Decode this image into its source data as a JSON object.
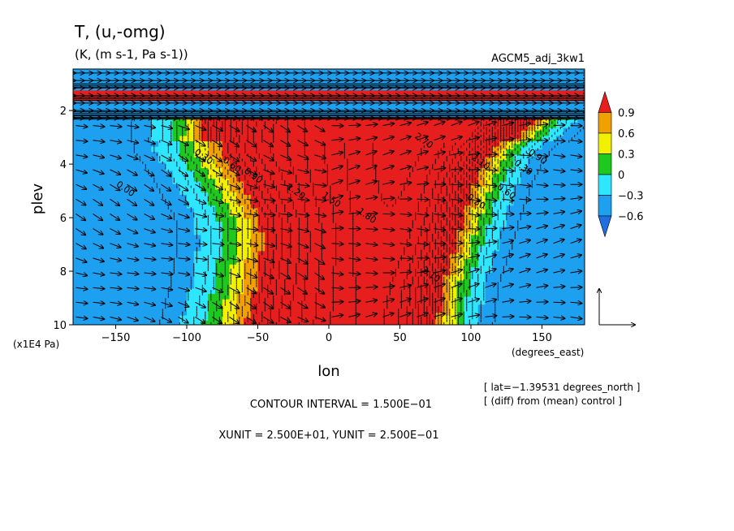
{
  "chart_data": {
    "type": "heatmap",
    "subtype": "latitude-pressure cross section: shaded temperature anomaly with contour lines and (u,-omg) vectors",
    "title": "T, (u,-omg)",
    "units_line": "(K, (m s-1, Pa s-1))",
    "model_label": "AGCM5_adj_3kw1",
    "xlabel": "lon",
    "x_unit_label": "(degrees_east)",
    "ylabel": "plev",
    "y_unit_label": "(x1E4 Pa)",
    "x_ticks": [
      -150,
      -100,
      -50,
      0,
      50,
      100,
      150
    ],
    "x_tick_labels": [
      "−150",
      "−100",
      "−50",
      "0",
      "50",
      "100",
      "150"
    ],
    "y_ticks": [
      2,
      4,
      6,
      8,
      10
    ],
    "y_tick_labels": [
      "2",
      "4",
      "6",
      "8",
      "10"
    ],
    "xlim": [
      -180,
      180
    ],
    "ylim": [
      10.0,
      0.45
    ],
    "y_inverted": true,
    "colorbar": {
      "levels": [
        -0.6,
        -0.3,
        0,
        0.3,
        0.6,
        0.9
      ],
      "level_labels": [
        "−0.6",
        "−0.3",
        "0",
        "0.3",
        "0.6",
        "0.9"
      ],
      "colors": [
        "#1f6fe0",
        "#1ea0f0",
        "#2ee6ff",
        "#1ec81e",
        "#f0f000",
        "#f0a000",
        "#e61e1e"
      ]
    },
    "contour_labels": [
      "2.70",
      "2.10",
      "1.80",
      "1.50",
      "1.20",
      "0.90",
      "0.60",
      "0.30",
      "0.00",
      "-0.30",
      "2.10",
      "0.60",
      "0.30",
      "0.90"
    ],
    "info_lines": [
      "[ lat=−1.39531 degrees_north ]",
      "[ (diff) from (mean) control ]"
    ],
    "contour_interval": "CONTOUR INTERVAL = 1.500E−01",
    "units_footer": "XUNIT = 2.500E+01, YUNIT = 2.500E−01",
    "anomaly_profile": {
      "plev": [
        1.0,
        2.0,
        3.5,
        4.5,
        6.0,
        7.0,
        8.5,
        10.0
      ],
      "west_zero_lon": [
        -180,
        -110,
        -112,
        -100,
        -85,
        -83,
        -88,
        -95
      ],
      "east_zero_lon": [
        180,
        170,
        140,
        128,
        118,
        112,
        102,
        98
      ],
      "peak_value_K": 2.7
    }
  }
}
